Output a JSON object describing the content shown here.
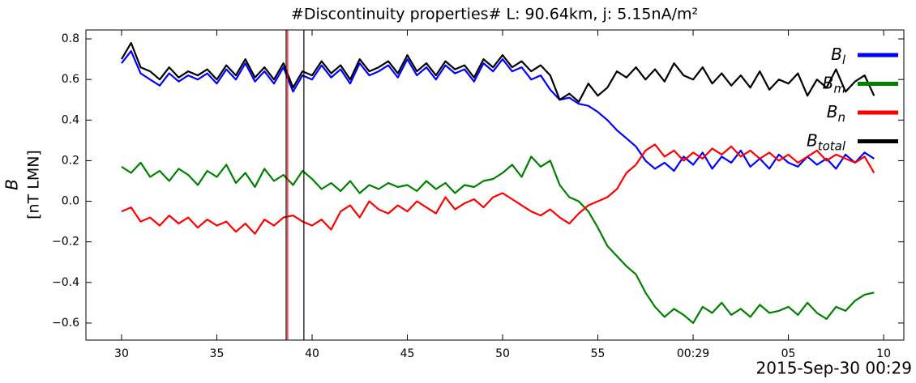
{
  "chart_data": {
    "type": "line",
    "title": "#Discontinuity properties# L: 90.64km, j: 5.15nA/m²",
    "y_label": "B",
    "y_label_unit": "[nT LMN]",
    "x_corner_label": "2015-Sep-30 00:29",
    "x": [
      30,
      30.5,
      31,
      31.5,
      32,
      32.5,
      33,
      33.5,
      34,
      34.5,
      35,
      35.5,
      36,
      36.5,
      37,
      37.5,
      38,
      38.5,
      39,
      39.5,
      40,
      40.5,
      41,
      41.5,
      42,
      42.5,
      43,
      43.5,
      44,
      44.5,
      45,
      45.5,
      46,
      46.5,
      47,
      47.5,
      48,
      48.5,
      49,
      49.5,
      50,
      50.5,
      51,
      51.5,
      52,
      52.5,
      53,
      53.5,
      54,
      54.5,
      55,
      55.5,
      56,
      56.5,
      57,
      57.5,
      58,
      58.5,
      59,
      59.5,
      60,
      60.5,
      61,
      61.5,
      62,
      62.5,
      63,
      63.5,
      64,
      64.5,
      65,
      65.5,
      66,
      66.5,
      67,
      67.5,
      68,
      68.5,
      69,
      69.5
    ],
    "series": [
      {
        "name": "Bl",
        "color": "#0000ff",
        "values": [
          0.68,
          0.74,
          0.63,
          0.6,
          0.57,
          0.63,
          0.59,
          0.62,
          0.6,
          0.63,
          0.58,
          0.65,
          0.6,
          0.68,
          0.59,
          0.64,
          0.58,
          0.66,
          0.54,
          0.62,
          0.6,
          0.67,
          0.61,
          0.65,
          0.58,
          0.68,
          0.62,
          0.64,
          0.67,
          0.61,
          0.7,
          0.62,
          0.66,
          0.6,
          0.67,
          0.63,
          0.65,
          0.59,
          0.68,
          0.64,
          0.7,
          0.64,
          0.66,
          0.6,
          0.62,
          0.55,
          0.5,
          0.51,
          0.48,
          0.47,
          0.44,
          0.4,
          0.35,
          0.31,
          0.27,
          0.2,
          0.16,
          0.19,
          0.15,
          0.22,
          0.18,
          0.24,
          0.16,
          0.22,
          0.19,
          0.25,
          0.17,
          0.21,
          0.16,
          0.23,
          0.19,
          0.17,
          0.22,
          0.18,
          0.21,
          0.16,
          0.23,
          0.19,
          0.24,
          0.21
        ]
      },
      {
        "name": "Bm",
        "color": "#008000",
        "values": [
          0.17,
          0.14,
          0.19,
          0.12,
          0.15,
          0.1,
          0.16,
          0.13,
          0.08,
          0.15,
          0.12,
          0.18,
          0.09,
          0.14,
          0.07,
          0.16,
          0.1,
          0.13,
          0.08,
          0.15,
          0.11,
          0.06,
          0.09,
          0.05,
          0.1,
          0.04,
          0.08,
          0.06,
          0.09,
          0.07,
          0.08,
          0.05,
          0.1,
          0.06,
          0.09,
          0.04,
          0.08,
          0.07,
          0.1,
          0.11,
          0.14,
          0.18,
          0.12,
          0.22,
          0.17,
          0.2,
          0.08,
          0.02,
          0.0,
          -0.05,
          -0.13,
          -0.22,
          -0.27,
          -0.32,
          -0.36,
          -0.45,
          -0.52,
          -0.57,
          -0.53,
          -0.56,
          -0.6,
          -0.52,
          -0.55,
          -0.5,
          -0.56,
          -0.53,
          -0.57,
          -0.51,
          -0.55,
          -0.54,
          -0.52,
          -0.56,
          -0.5,
          -0.55,
          -0.58,
          -0.52,
          -0.54,
          -0.49,
          -0.46,
          -0.45
        ]
      },
      {
        "name": "Bn",
        "color": "#ff0000",
        "values": [
          -0.05,
          -0.03,
          -0.1,
          -0.08,
          -0.12,
          -0.07,
          -0.11,
          -0.08,
          -0.13,
          -0.09,
          -0.12,
          -0.1,
          -0.15,
          -0.11,
          -0.16,
          -0.09,
          -0.12,
          -0.08,
          -0.07,
          -0.1,
          -0.12,
          -0.09,
          -0.14,
          -0.05,
          -0.02,
          -0.08,
          0.0,
          -0.04,
          -0.06,
          -0.02,
          -0.05,
          0.0,
          -0.03,
          -0.06,
          0.02,
          -0.04,
          -0.01,
          0.01,
          -0.03,
          0.02,
          0.04,
          0.01,
          -0.02,
          -0.05,
          -0.07,
          -0.04,
          -0.08,
          -0.11,
          -0.06,
          -0.02,
          0.0,
          0.02,
          0.06,
          0.14,
          0.18,
          0.25,
          0.28,
          0.22,
          0.25,
          0.2,
          0.24,
          0.21,
          0.26,
          0.23,
          0.27,
          0.22,
          0.25,
          0.21,
          0.24,
          0.2,
          0.23,
          0.19,
          0.22,
          0.25,
          0.2,
          0.23,
          0.21,
          0.19,
          0.22,
          0.14
        ]
      },
      {
        "name": "Btotal",
        "color": "#000000",
        "values": [
          0.7,
          0.78,
          0.66,
          0.64,
          0.6,
          0.66,
          0.61,
          0.64,
          0.62,
          0.65,
          0.6,
          0.67,
          0.62,
          0.7,
          0.61,
          0.66,
          0.6,
          0.68,
          0.56,
          0.64,
          0.62,
          0.69,
          0.63,
          0.67,
          0.6,
          0.7,
          0.64,
          0.66,
          0.69,
          0.63,
          0.72,
          0.64,
          0.68,
          0.62,
          0.69,
          0.65,
          0.67,
          0.61,
          0.7,
          0.66,
          0.72,
          0.66,
          0.69,
          0.64,
          0.67,
          0.62,
          0.5,
          0.53,
          0.49,
          0.58,
          0.52,
          0.56,
          0.64,
          0.61,
          0.66,
          0.6,
          0.65,
          0.59,
          0.68,
          0.62,
          0.6,
          0.66,
          0.58,
          0.63,
          0.57,
          0.62,
          0.56,
          0.64,
          0.55,
          0.6,
          0.58,
          0.63,
          0.52,
          0.6,
          0.56,
          0.65,
          0.54,
          0.59,
          0.62,
          0.52
        ]
      }
    ],
    "vlines": [
      {
        "x": 38.64,
        "color": "#000000"
      },
      {
        "x": 38.72,
        "color": "#ff0000"
      },
      {
        "x": 39.57,
        "color": "#000000"
      }
    ],
    "xlim": [
      28.13,
      71.06
    ],
    "xticks": [
      30,
      35,
      40,
      45,
      50,
      55,
      {
        "value": 60,
        "label": "00:29"
      },
      {
        "value": 65,
        "label": "05"
      },
      {
        "value": 70,
        "label": "10"
      }
    ],
    "ylim": [
      -0.684,
      0.844
    ],
    "yticks": [
      {
        "value": -0.6,
        "label": "−0.6"
      },
      {
        "value": -0.4,
        "label": "−0.4"
      },
      {
        "value": -0.2,
        "label": "−0.2"
      },
      {
        "value": 0,
        "label": "0.0"
      },
      0.2,
      0.4,
      0.6,
      0.8
    ],
    "legend": "upper right"
  }
}
